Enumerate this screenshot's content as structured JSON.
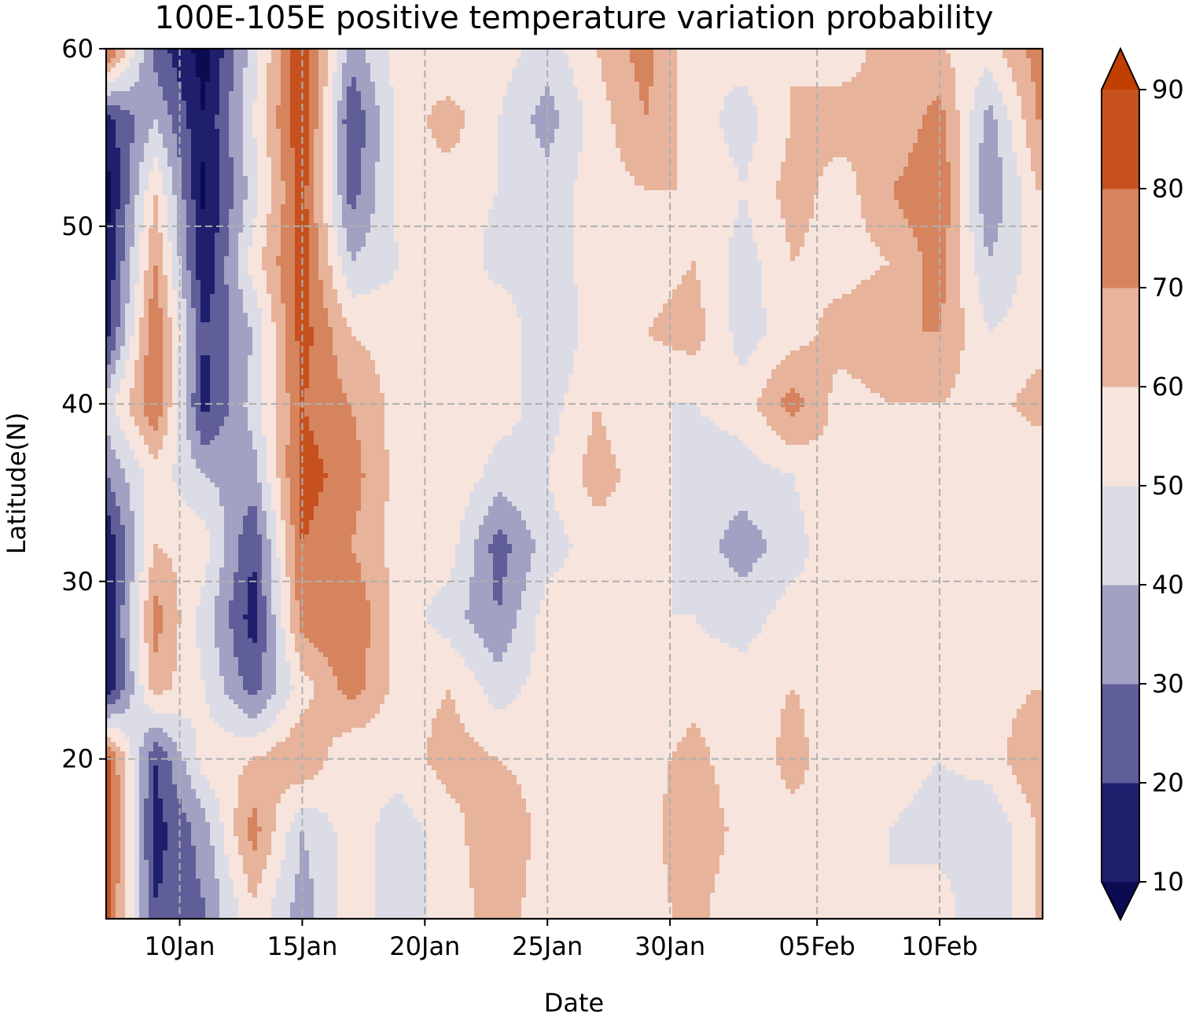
{
  "chart_data": {
    "type": "heatmap",
    "subtype": "filled-contour",
    "title": "100E-105E positive temperature variation probability",
    "xlabel": "Date",
    "ylabel": "Latitude(N)",
    "x_ticks": [
      {
        "day": 10,
        "label": "10Jan"
      },
      {
        "day": 15,
        "label": "15Jan"
      },
      {
        "day": 20,
        "label": "20Jan"
      },
      {
        "day": 25,
        "label": "25Jan"
      },
      {
        "day": 30,
        "label": "30Jan"
      },
      {
        "day": 36,
        "label": "05Feb"
      },
      {
        "day": 41,
        "label": "10Feb"
      }
    ],
    "x_range_days": [
      7,
      45.2
    ],
    "y_ticks": [
      20,
      30,
      40,
      50,
      60
    ],
    "ylim": [
      11,
      60
    ],
    "grid": true,
    "colorbar": {
      "levels": [
        10,
        20,
        30,
        40,
        50,
        60,
        70,
        80,
        90
      ],
      "tick_labels": [
        "10",
        "20",
        "30",
        "40",
        "50",
        "60",
        "70",
        "80",
        "90"
      ],
      "extend": "both",
      "colors": [
        "#0c0b52",
        "#1f1f6e",
        "#5f5e98",
        "#a2a1c3",
        "#dcdce6",
        "#f6e4dd",
        "#e7b39a",
        "#d6845e",
        "#c6511f",
        "#bf3e00"
      ]
    },
    "grid_lats": [
      60,
      56,
      52,
      48,
      44,
      40,
      36,
      32,
      28,
      24,
      20,
      16,
      12
    ],
    "grid_days": [
      7,
      9,
      11,
      13,
      15,
      17,
      19,
      21,
      23,
      25,
      27,
      29,
      31,
      33,
      35,
      37,
      39,
      41,
      43,
      45
    ],
    "values": [
      [
        85,
        25,
        5,
        45,
        90,
        35,
        55,
        50,
        55,
        45,
        60,
        75,
        50,
        55,
        60,
        55,
        65,
        60,
        55,
        75
      ],
      [
        15,
        40,
        10,
        50,
        90,
        20,
        55,
        65,
        50,
        35,
        55,
        70,
        55,
        45,
        60,
        65,
        60,
        75,
        35,
        70
      ],
      [
        5,
        60,
        8,
        45,
        85,
        25,
        55,
        55,
        50,
        45,
        55,
        60,
        60,
        50,
        65,
        55,
        70,
        80,
        30,
        60
      ],
      [
        10,
        70,
        10,
        55,
        85,
        40,
        50,
        60,
        45,
        45,
        55,
        55,
        60,
        45,
        60,
        55,
        60,
        75,
        40,
        55
      ],
      [
        15,
        80,
        20,
        40,
        85,
        60,
        55,
        55,
        60,
        40,
        55,
        60,
        65,
        45,
        55,
        65,
        70,
        70,
        50,
        55
      ],
      [
        45,
        80,
        15,
        45,
        80,
        70,
        55,
        60,
        55,
        45,
        60,
        50,
        50,
        55,
        75,
        55,
        60,
        60,
        55,
        65
      ],
      [
        30,
        55,
        40,
        35,
        85,
        75,
        55,
        60,
        45,
        50,
        65,
        55,
        45,
        45,
        50,
        60,
        60,
        55,
        55,
        50
      ],
      [
        10,
        60,
        55,
        20,
        80,
        70,
        55,
        55,
        25,
        45,
        55,
        55,
        45,
        35,
        45,
        60,
        55,
        55,
        60,
        50
      ],
      [
        8,
        75,
        45,
        15,
        75,
        80,
        55,
        45,
        30,
        55,
        55,
        50,
        50,
        45,
        55,
        50,
        55,
        55,
        60,
        50
      ],
      [
        10,
        65,
        50,
        25,
        55,
        75,
        55,
        60,
        45,
        55,
        50,
        50,
        55,
        55,
        60,
        55,
        50,
        55,
        55,
        60
      ],
      [
        85,
        20,
        55,
        60,
        70,
        50,
        55,
        65,
        60,
        55,
        50,
        55,
        65,
        50,
        65,
        50,
        55,
        50,
        55,
        70
      ],
      [
        90,
        15,
        35,
        75,
        40,
        55,
        45,
        55,
        70,
        55,
        50,
        55,
        70,
        55,
        55,
        60,
        50,
        45,
        40,
        60
      ],
      [
        85,
        20,
        30,
        60,
        35,
        55,
        45,
        55,
        65,
        55,
        55,
        55,
        65,
        50,
        60,
        55,
        50,
        55,
        40,
        60
      ]
    ]
  }
}
